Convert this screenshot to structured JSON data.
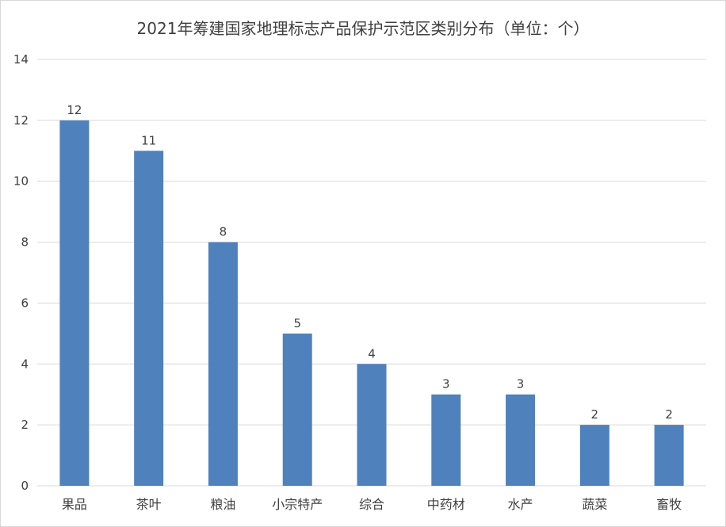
{
  "chart_data": {
    "type": "bar",
    "title": "2021年筹建国家地理标志产品保护示范区类别分布（单位：个）",
    "xlabel": "",
    "ylabel": "",
    "categories": [
      "果品",
      "茶叶",
      "粮油",
      "小宗特产",
      "综合",
      "中药材",
      "水产",
      "蔬菜",
      "畜牧"
    ],
    "values": [
      12,
      11,
      8,
      5,
      4,
      3,
      3,
      2,
      2
    ],
    "ylim": [
      0,
      14
    ],
    "yticks": [
      0,
      2,
      4,
      6,
      8,
      10,
      12,
      14
    ],
    "grid": true,
    "legend": "none",
    "data_labels": true,
    "bar_color": "#4f81bd",
    "grid_color": "#d9d9d9",
    "text_color": "#404040"
  }
}
